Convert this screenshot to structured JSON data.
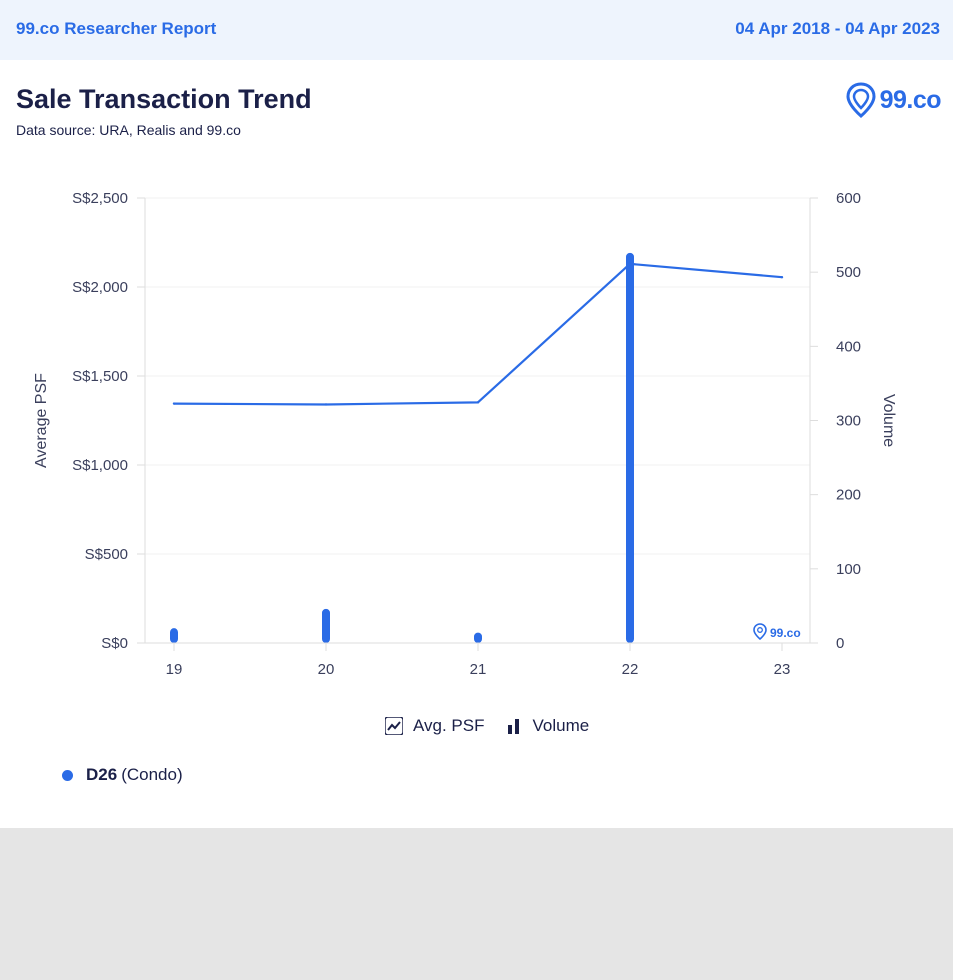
{
  "header": {
    "report_name": "99.co Researcher Report",
    "date_range": "04 Apr 2018 - 04 Apr 2023"
  },
  "title": "Sale Transaction Trend",
  "data_source": "Data source: URA, Realis and 99.co",
  "brand": {
    "logo_text": "99.co",
    "watermark_text": "99.co",
    "icon": "location-pin-icon"
  },
  "colors": {
    "accent": "#2a6be6",
    "text": "#1b2048",
    "header_bg": "#eef4fd",
    "footer_bg": "#e5e5e5"
  },
  "legend": {
    "items": [
      {
        "label": "Avg. PSF",
        "icon": "line-chart-icon"
      },
      {
        "label": "Volume",
        "icon": "bar-chart-icon"
      }
    ]
  },
  "series_key": {
    "name": "D26",
    "type": "(Condo)"
  },
  "chart_data": {
    "type": "line",
    "categories": [
      "19",
      "20",
      "21",
      "22",
      "23"
    ],
    "series": [
      {
        "name": "Avg. PSF",
        "type": "line",
        "axis": "left",
        "values": [
          1345,
          1340,
          1352,
          2130,
          2055
        ]
      },
      {
        "name": "Volume",
        "type": "bar",
        "axis": "right",
        "values": [
          20,
          46,
          14,
          526,
          0
        ]
      }
    ],
    "ylabel": "Average PSF",
    "y2label": "Volume",
    "ylim": [
      0,
      2500
    ],
    "y2lim": [
      0,
      600
    ],
    "yticks": [
      0,
      500,
      1000,
      1500,
      2000,
      2500
    ],
    "ytick_labels": [
      "S$0",
      "S$500",
      "S$1,000",
      "S$1,500",
      "S$2,000",
      "S$2,500"
    ],
    "y2ticks": [
      0,
      100,
      200,
      300,
      400,
      500,
      600
    ],
    "y2tick_labels": [
      "0",
      "100",
      "200",
      "300",
      "400",
      "500",
      "600"
    ],
    "grid": true
  }
}
